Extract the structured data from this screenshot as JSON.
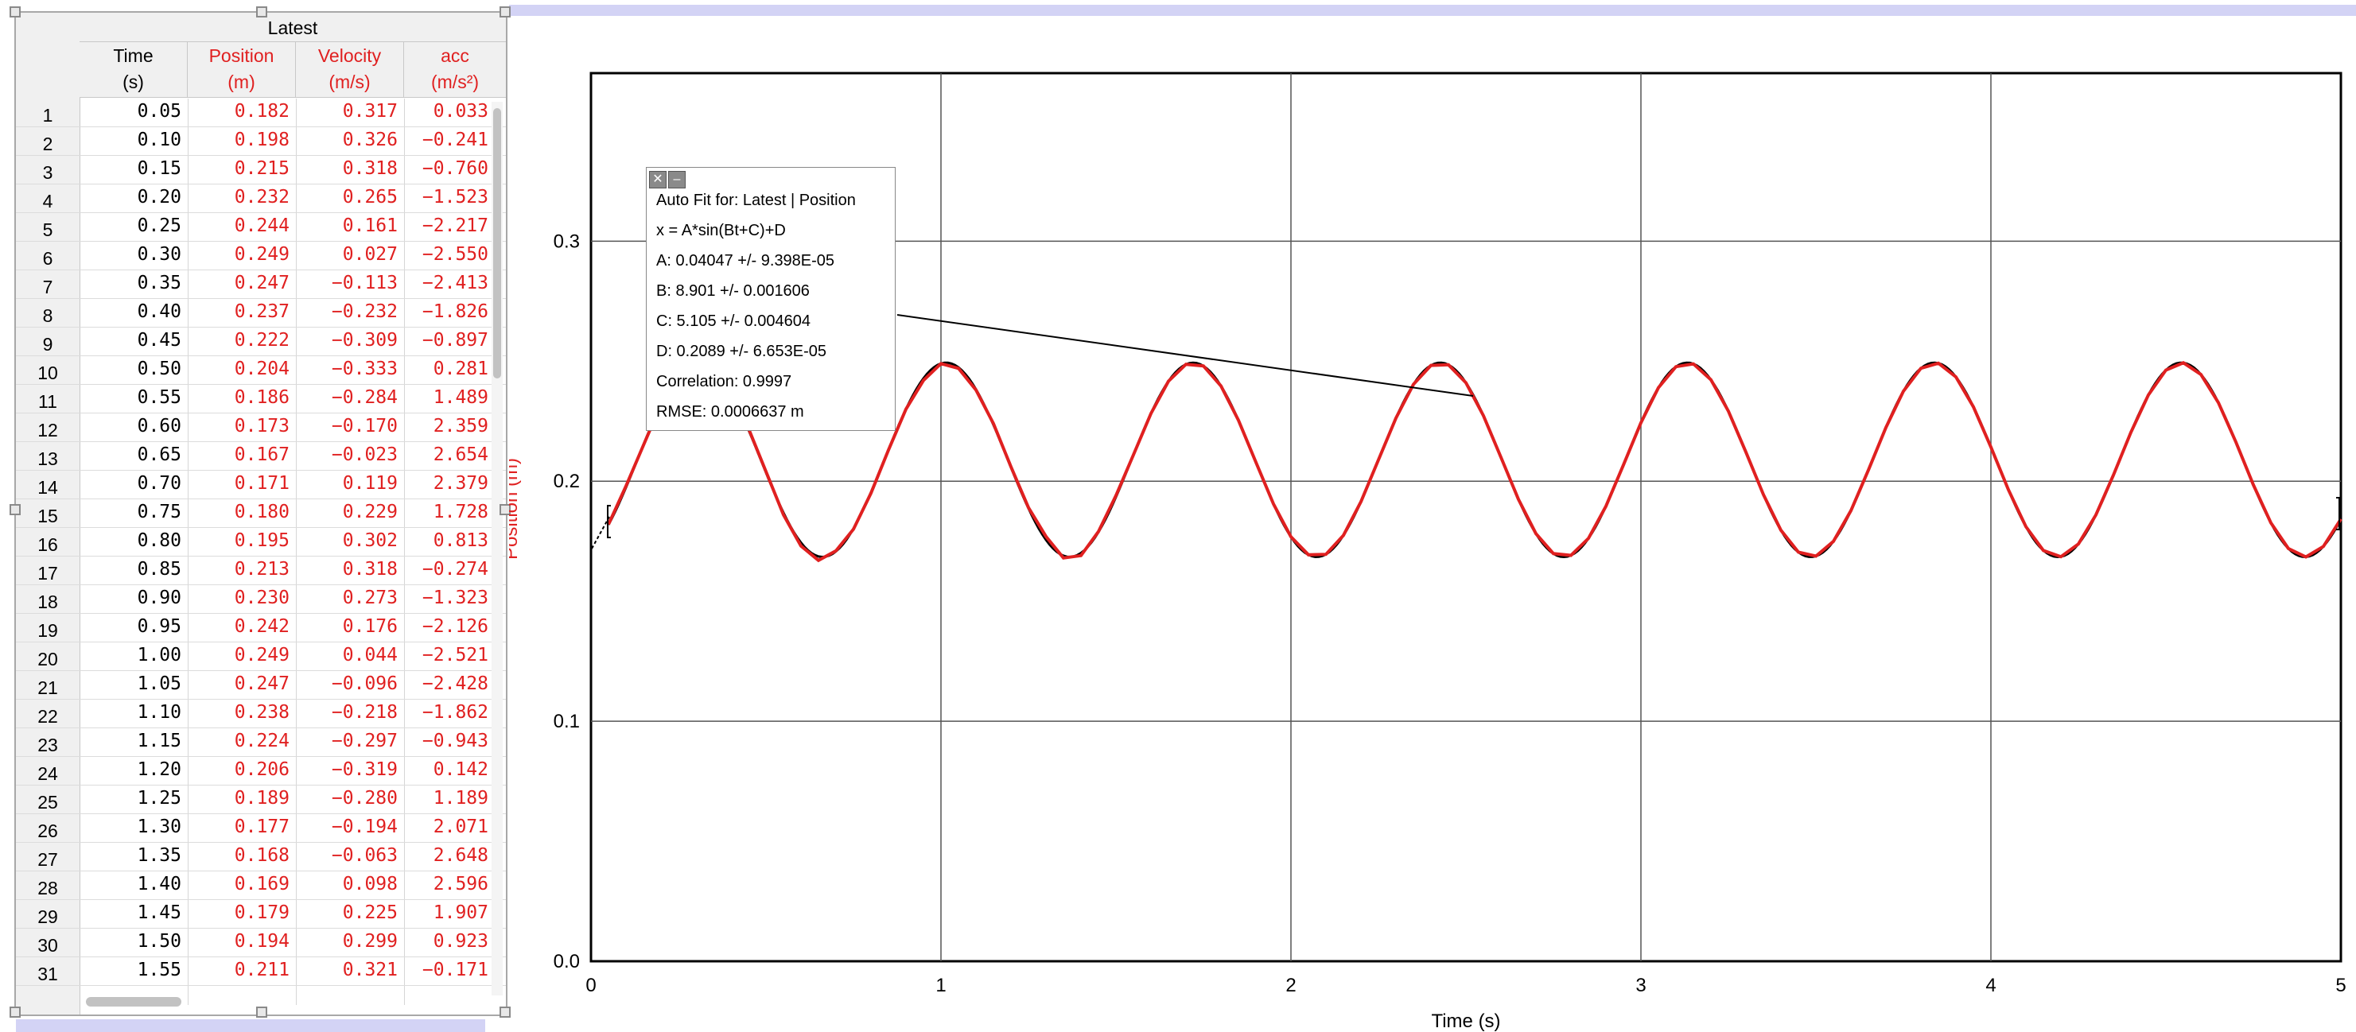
{
  "table": {
    "dataset_title": "Latest",
    "columns": [
      {
        "name": "Time",
        "unit": "(s)",
        "color": "#000000"
      },
      {
        "name": "Position",
        "unit": "(m)",
        "color": "#e02020"
      },
      {
        "name": "Velocity",
        "unit": "(m/s)",
        "color": "#e02020"
      },
      {
        "name": "acc",
        "unit": "(m/s²)",
        "color": "#e02020"
      }
    ],
    "rows": [
      [
        "1",
        "0.05",
        "0.182",
        "0.317",
        "0.033"
      ],
      [
        "2",
        "0.10",
        "0.198",
        "0.326",
        "−0.241"
      ],
      [
        "3",
        "0.15",
        "0.215",
        "0.318",
        "−0.760"
      ],
      [
        "4",
        "0.20",
        "0.232",
        "0.265",
        "−1.523"
      ],
      [
        "5",
        "0.25",
        "0.244",
        "0.161",
        "−2.217"
      ],
      [
        "6",
        "0.30",
        "0.249",
        "0.027",
        "−2.550"
      ],
      [
        "7",
        "0.35",
        "0.247",
        "−0.113",
        "−2.413"
      ],
      [
        "8",
        "0.40",
        "0.237",
        "−0.232",
        "−1.826"
      ],
      [
        "9",
        "0.45",
        "0.222",
        "−0.309",
        "−0.897"
      ],
      [
        "10",
        "0.50",
        "0.204",
        "−0.333",
        "0.281"
      ],
      [
        "11",
        "0.55",
        "0.186",
        "−0.284",
        "1.489"
      ],
      [
        "12",
        "0.60",
        "0.173",
        "−0.170",
        "2.359"
      ],
      [
        "13",
        "0.65",
        "0.167",
        "−0.023",
        "2.654"
      ],
      [
        "14",
        "0.70",
        "0.171",
        "0.119",
        "2.379"
      ],
      [
        "15",
        "0.75",
        "0.180",
        "0.229",
        "1.728"
      ],
      [
        "16",
        "0.80",
        "0.195",
        "0.302",
        "0.813"
      ],
      [
        "17",
        "0.85",
        "0.213",
        "0.318",
        "−0.274"
      ],
      [
        "18",
        "0.90",
        "0.230",
        "0.273",
        "−1.323"
      ],
      [
        "19",
        "0.95",
        "0.242",
        "0.176",
        "−2.126"
      ],
      [
        "20",
        "1.00",
        "0.249",
        "0.044",
        "−2.521"
      ],
      [
        "21",
        "1.05",
        "0.247",
        "−0.096",
        "−2.428"
      ],
      [
        "22",
        "1.10",
        "0.238",
        "−0.218",
        "−1.862"
      ],
      [
        "23",
        "1.15",
        "0.224",
        "−0.297",
        "−0.943"
      ],
      [
        "24",
        "1.20",
        "0.206",
        "−0.319",
        "0.142"
      ],
      [
        "25",
        "1.25",
        "0.189",
        "−0.280",
        "1.189"
      ],
      [
        "26",
        "1.30",
        "0.177",
        "−0.194",
        "2.071"
      ],
      [
        "27",
        "1.35",
        "0.168",
        "−0.063",
        "2.648"
      ],
      [
        "28",
        "1.40",
        "0.169",
        "0.098",
        "2.596"
      ],
      [
        "29",
        "1.45",
        "0.179",
        "0.225",
        "1.907"
      ],
      [
        "30",
        "1.50",
        "0.194",
        "0.299",
        "0.923"
      ],
      [
        "31",
        "1.55",
        "0.211",
        "0.321",
        "−0.171"
      ]
    ]
  },
  "graph": {
    "xlabel": "Time (s)",
    "ylabel": "Position (m)",
    "x_ticks": [
      "0",
      "1",
      "2",
      "3",
      "4",
      "5"
    ],
    "y_ticks": [
      "0.0",
      "0.1",
      "0.2",
      "0.3"
    ],
    "colors": {
      "data": "#e02020",
      "fit": "#000000",
      "grid": "#555555"
    }
  },
  "chart_data": {
    "type": "line",
    "xlabel": "Time (s)",
    "ylabel": "Position (m)",
    "xlim": [
      0,
      5
    ],
    "ylim": [
      0,
      0.37
    ],
    "x_ticks": [
      0,
      1,
      2,
      3,
      4,
      5
    ],
    "y_ticks": [
      0.0,
      0.1,
      0.2,
      0.3
    ],
    "grid": true,
    "series": [
      {
        "color": "#e02020",
        "x": [
          0.05,
          0.1,
          0.15,
          0.2,
          0.25,
          0.3,
          0.35,
          0.4,
          0.45,
          0.5,
          0.55,
          0.6,
          0.65,
          0.7,
          0.75,
          0.8,
          0.85,
          0.9,
          0.95,
          1.0,
          1.05,
          1.1,
          1.15,
          1.2,
          1.25,
          1.3,
          1.35,
          1.4,
          1.45,
          1.5,
          1.55
        ],
        "y": [
          0.182,
          0.198,
          0.215,
          0.232,
          0.244,
          0.249,
          0.247,
          0.237,
          0.222,
          0.204,
          0.186,
          0.173,
          0.167,
          0.171,
          0.18,
          0.195,
          0.213,
          0.23,
          0.242,
          0.249,
          0.247,
          0.238,
          0.224,
          0.206,
          0.189,
          0.177,
          0.168,
          0.169,
          0.179,
          0.194,
          0.211
        ]
      }
    ],
    "fit": {
      "model": "A*sin(Bt+C)+D",
      "A": 0.04047,
      "B": 8.901,
      "C": 5.105,
      "D": 0.2089,
      "x_range": [
        0.05,
        5.0
      ],
      "color": "#000000"
    }
  },
  "fit_box": {
    "title": "Auto Fit for: Latest | Position",
    "equation": "x = A*sin(Bt+C)+D",
    "a": "A: 0.04047 +/- 9.398E-05",
    "b": "B: 8.901 +/- 0.001606",
    "c": "C: 5.105 +/- 0.004604",
    "d": "D: 0.2089 +/- 6.653E-05",
    "correlation": "Correlation: 0.9997",
    "rmse": "RMSE: 0.0006637 m",
    "close_glyph": "✕",
    "minimize_glyph": "–"
  }
}
